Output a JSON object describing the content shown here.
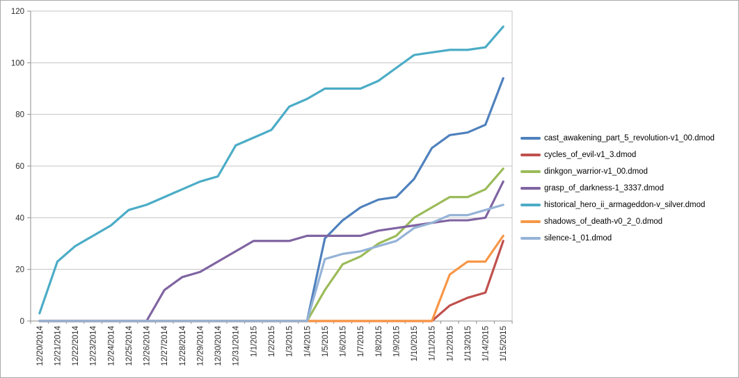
{
  "chart_data": {
    "type": "line",
    "title": "",
    "xlabel": "",
    "ylabel": "",
    "x": [
      "12/20/2014",
      "12/21/2014",
      "12/22/2014",
      "12/23/2014",
      "12/24/2014",
      "12/25/2014",
      "12/26/2014",
      "12/27/2014",
      "12/28/2014",
      "12/29/2014",
      "12/30/2014",
      "12/31/2014",
      "1/1/2015",
      "1/2/2015",
      "1/3/2015",
      "1/4/2015",
      "1/5/2015",
      "1/6/2015",
      "1/7/2015",
      "1/8/2015",
      "1/9/2015",
      "1/10/2015",
      "1/11/2015",
      "1/12/2015",
      "1/13/2015",
      "1/14/2015",
      "1/15/2015"
    ],
    "ylim": [
      0,
      120
    ],
    "y_ticks": [
      0,
      20,
      40,
      60,
      80,
      100,
      120
    ],
    "grid": true,
    "legend_position": "right",
    "series": [
      {
        "name": "cast_awakening_part_5_revolution-v1_00.dmod",
        "color": "#4F81BD",
        "values": [
          0,
          0,
          0,
          0,
          0,
          0,
          0,
          0,
          0,
          0,
          0,
          0,
          0,
          0,
          0,
          0,
          32,
          39,
          44,
          47,
          48,
          55,
          67,
          72,
          73,
          76,
          94
        ]
      },
      {
        "name": "cycles_of_evil-v1_3.dmod",
        "color": "#C0504D",
        "values": [
          0,
          0,
          0,
          0,
          0,
          0,
          0,
          0,
          0,
          0,
          0,
          0,
          0,
          0,
          0,
          0,
          0,
          0,
          0,
          0,
          0,
          0,
          0,
          6,
          9,
          11,
          31
        ]
      },
      {
        "name": "dinkgon_warrior-v1_00.dmod",
        "color": "#9BBB59",
        "values": [
          0,
          0,
          0,
          0,
          0,
          0,
          0,
          0,
          0,
          0,
          0,
          0,
          0,
          0,
          0,
          0,
          12,
          22,
          25,
          30,
          33,
          40,
          44,
          48,
          48,
          51,
          59
        ]
      },
      {
        "name": "grasp_of_darkness-1_3337.dmod",
        "color": "#8064A2",
        "values": [
          0,
          0,
          0,
          0,
          0,
          0,
          0,
          12,
          17,
          19,
          23,
          27,
          31,
          31,
          31,
          33,
          33,
          33,
          33,
          35,
          36,
          37,
          38,
          39,
          39,
          40,
          54
        ]
      },
      {
        "name": "historical_hero_ii_armageddon-v_silver.dmod",
        "color": "#4BACC6",
        "values": [
          3,
          23,
          29,
          33,
          37,
          43,
          45,
          48,
          51,
          54,
          56,
          68,
          71,
          74,
          83,
          86,
          90,
          90,
          90,
          93,
          98,
          103,
          104,
          105,
          105,
          106,
          114
        ]
      },
      {
        "name": "shadows_of_death-v0_2_0.dmod",
        "color": "#F79646",
        "values": [
          0,
          0,
          0,
          0,
          0,
          0,
          0,
          0,
          0,
          0,
          0,
          0,
          0,
          0,
          0,
          0,
          0,
          0,
          0,
          0,
          0,
          0,
          0,
          18,
          23,
          23,
          33
        ]
      },
      {
        "name": "silence-1_01.dmod",
        "color": "#95B3D7",
        "values": [
          0,
          0,
          0,
          0,
          0,
          0,
          0,
          0,
          0,
          0,
          0,
          0,
          0,
          0,
          0,
          0,
          24,
          26,
          27,
          29,
          31,
          36,
          38,
          41,
          41,
          43,
          45
        ]
      }
    ],
    "style": {
      "background": "#ffffff",
      "frame_border": "#a9a9a9",
      "gridline_color": "#c3c3c3",
      "axis_color": "#8e8e8e",
      "label_color": "#2b2b2b"
    }
  }
}
